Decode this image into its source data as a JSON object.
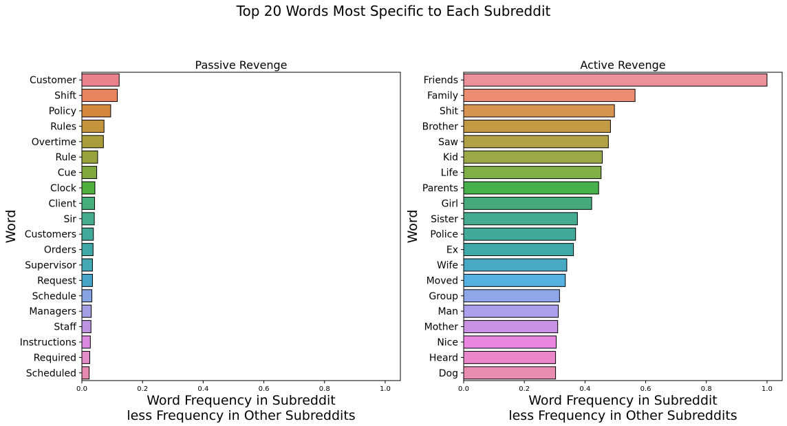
{
  "title": "Top 20 Words Most Specific to Each Subreddit",
  "chart_data": [
    {
      "type": "bar",
      "orientation": "horizontal",
      "title": "Passive Revenge",
      "ylabel": "Word",
      "xlabel_line1": "Word Frequency in Subreddit",
      "xlabel_line2": "less Frequency in Other Subreddits",
      "xlim": [
        0,
        1.05
      ],
      "xticks": [
        "0.0",
        "0.2",
        "0.4",
        "0.6",
        "0.8",
        "1.0"
      ],
      "categories": [
        "Customer",
        "Shift",
        "Policy",
        "Rules",
        "Overtime",
        "Rule",
        "Cue",
        "Clock",
        "Client",
        "Sir",
        "Customers",
        "Orders",
        "Supervisor",
        "Request",
        "Schedule",
        "Managers",
        "Staff",
        "Instructions",
        "Required",
        "Scheduled"
      ],
      "values": [
        0.123,
        0.117,
        0.095,
        0.073,
        0.071,
        0.052,
        0.049,
        0.043,
        0.042,
        0.041,
        0.038,
        0.037,
        0.035,
        0.035,
        0.033,
        0.031,
        0.03,
        0.028,
        0.026,
        0.024
      ],
      "colors": [
        "#e8838d",
        "#e8855e",
        "#d3883d",
        "#c3943c",
        "#aa9d3c",
        "#98a33e",
        "#80a83f",
        "#4fb03d",
        "#45ae79",
        "#46ac8f",
        "#42a899",
        "#40a8a6",
        "#44a8b5",
        "#49a5c7",
        "#86a2e0",
        "#a39de3",
        "#bd93e0",
        "#d98ae0",
        "#e48cc8",
        "#e689b1"
      ]
    },
    {
      "type": "bar",
      "orientation": "horizontal",
      "title": "Active Revenge",
      "ylabel": "Word",
      "xlabel_line1": "Word Frequency in Subreddit",
      "xlabel_line2": "less Frequency in Other Subreddits",
      "xlim": [
        0,
        1.05
      ],
      "xticks": [
        "0.0",
        "0.2",
        "0.4",
        "0.6",
        "0.8",
        "1.0"
      ],
      "categories": [
        "Friends",
        "Family",
        "Shit",
        "Brother",
        "Saw",
        "Kid",
        "Life",
        "Parents",
        "Girl",
        "Sister",
        "Police",
        "Ex",
        "Wife",
        "Moved",
        "Group",
        "Man",
        "Mother",
        "Nice",
        "Heard",
        "Dog"
      ],
      "values": [
        1.0,
        0.565,
        0.497,
        0.484,
        0.477,
        0.457,
        0.453,
        0.445,
        0.422,
        0.375,
        0.369,
        0.362,
        0.34,
        0.335,
        0.316,
        0.312,
        0.31,
        0.305,
        0.303,
        0.303
      ],
      "colors": [
        "#ec919b",
        "#ec8c72",
        "#d79350",
        "#c39a44",
        "#b1a247",
        "#9ca748",
        "#80ae47",
        "#46b04b",
        "#46a97a",
        "#45aa90",
        "#42a999",
        "#3fa8a8",
        "#48a9c4",
        "#56b0e2",
        "#8fa7e8",
        "#ad9feb",
        "#cb92e3",
        "#e886e0",
        "#e985c8",
        "#e78db2"
      ]
    }
  ]
}
